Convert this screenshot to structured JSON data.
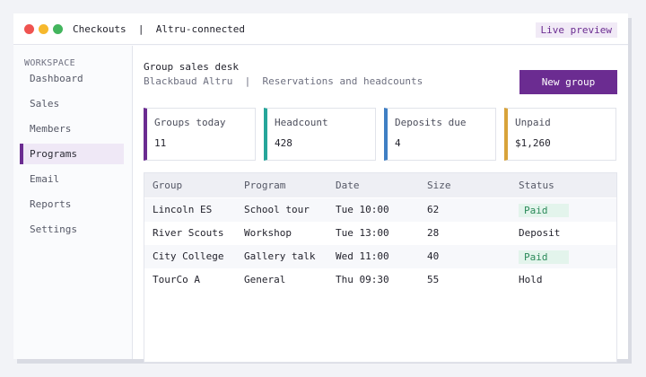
{
  "window": {
    "title": "Checkouts  |  Altru-connected",
    "badge": "Live preview",
    "accent": "#6b2c91"
  },
  "sidebar": {
    "section_label": "WORKSPACE",
    "items": [
      {
        "label": "Dashboard"
      },
      {
        "label": "Sales"
      },
      {
        "label": "Members"
      },
      {
        "label": "Programs",
        "active": true
      },
      {
        "label": "Email"
      },
      {
        "label": "Reports"
      },
      {
        "label": "Settings"
      }
    ]
  },
  "header": {
    "title": "Group sales desk",
    "subtitle": "Blackbaud Altru  |  Reservations and headcounts",
    "new_button": "New group"
  },
  "kpis": [
    {
      "label": "Groups today",
      "value": "11",
      "color": "#6b2c91"
    },
    {
      "label": "Headcount",
      "value": "428",
      "color": "#26a69a"
    },
    {
      "label": "Deposits due",
      "value": "4",
      "color": "#3f7fc4"
    },
    {
      "label": "Unpaid",
      "value": "$1,260",
      "color": "#d8a33a"
    }
  ],
  "table": {
    "columns": [
      "Group",
      "Program",
      "Date",
      "Size",
      "Status"
    ],
    "rows": [
      {
        "group": "Lincoln ES",
        "program": "School tour",
        "date": "Tue 10:00",
        "size": "62",
        "status": "Paid"
      },
      {
        "group": "River Scouts",
        "program": "Workshop",
        "date": "Tue 13:00",
        "size": "28",
        "status": "Deposit"
      },
      {
        "group": "City College",
        "program": "Gallery talk",
        "date": "Wed 11:00",
        "size": "40",
        "status": "Paid"
      },
      {
        "group": "TourCo A",
        "program": "General",
        "date": "Thu 09:30",
        "size": "55",
        "status": "Hold"
      }
    ]
  }
}
